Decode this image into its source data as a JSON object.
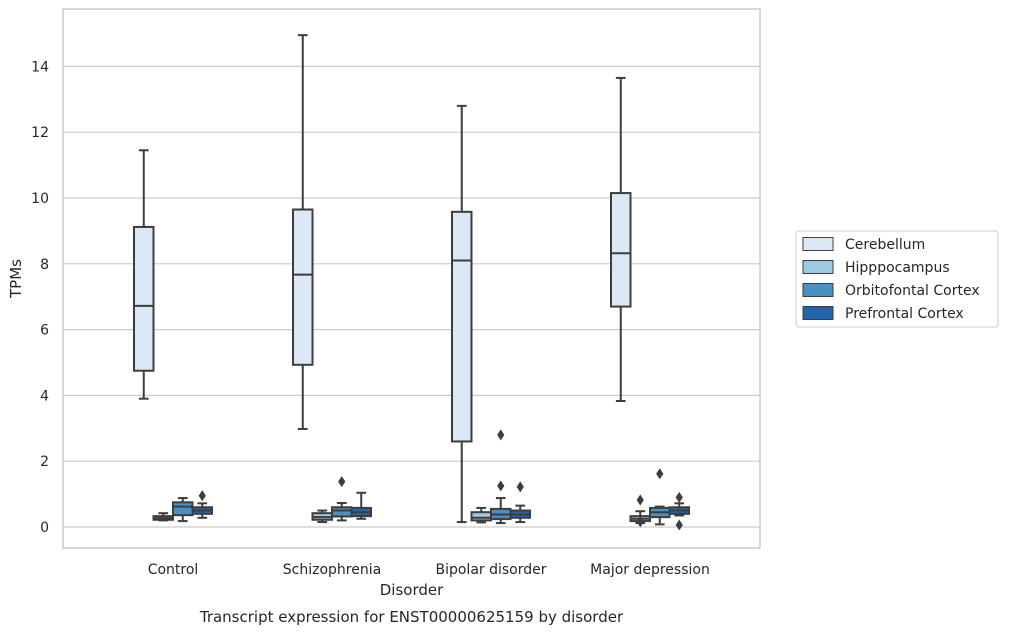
{
  "chart_data": {
    "type": "box",
    "caption": "Transcript expression for ENST00000625159 by disorder",
    "xlabel": "Disorder",
    "ylabel": "TPMs",
    "ylim": [
      -0.65,
      15.55
    ],
    "yticks": [
      0,
      2,
      4,
      6,
      8,
      10,
      12,
      14
    ],
    "grid": true,
    "legend_position": "right",
    "categories": [
      "Control",
      "Schizophrenia",
      "Bipolar disorder",
      "Major depression"
    ],
    "series": [
      {
        "name": "Cerebellum",
        "color": "#dbe9f6",
        "boxes": [
          {
            "whislo": 3.9,
            "q1": 4.75,
            "med": 6.72,
            "q3": 9.12,
            "whishi": 11.45,
            "fliers": []
          },
          {
            "whislo": 2.98,
            "q1": 4.93,
            "med": 7.67,
            "q3": 9.65,
            "whishi": 14.95,
            "fliers": []
          },
          {
            "whislo": 0.15,
            "q1": 2.6,
            "med": 8.1,
            "q3": 9.58,
            "whishi": 12.8,
            "fliers": []
          },
          {
            "whislo": 3.83,
            "q1": 6.7,
            "med": 8.32,
            "q3": 10.15,
            "whishi": 13.65,
            "fliers": []
          }
        ]
      },
      {
        "name": "Hipppocampus",
        "color": "#9ecae1",
        "boxes": [
          {
            "whislo": 0.2,
            "q1": 0.22,
            "med": 0.27,
            "q3": 0.33,
            "whishi": 0.42,
            "fliers": []
          },
          {
            "whislo": 0.15,
            "q1": 0.22,
            "med": 0.3,
            "q3": 0.42,
            "whishi": 0.5,
            "fliers": []
          },
          {
            "whislo": 0.14,
            "q1": 0.2,
            "med": 0.28,
            "q3": 0.45,
            "whishi": 0.58,
            "fliers": []
          },
          {
            "whislo": 0.12,
            "q1": 0.18,
            "med": 0.25,
            "q3": 0.33,
            "whishi": 0.48,
            "fliers": [
              0.16,
              0.82
            ]
          }
        ]
      },
      {
        "name": "Orbitofontal Cortex",
        "color": "#4a90c2",
        "boxes": [
          {
            "whislo": 0.18,
            "q1": 0.36,
            "med": 0.62,
            "q3": 0.75,
            "whishi": 0.88,
            "fliers": []
          },
          {
            "whislo": 0.2,
            "q1": 0.32,
            "med": 0.5,
            "q3": 0.6,
            "whishi": 0.73,
            "fliers": [
              1.38
            ]
          },
          {
            "whislo": 0.12,
            "q1": 0.24,
            "med": 0.38,
            "q3": 0.55,
            "whishi": 0.88,
            "fliers": [
              1.25,
              2.8
            ]
          },
          {
            "whislo": 0.08,
            "q1": 0.3,
            "med": 0.45,
            "q3": 0.58,
            "whishi": 0.62,
            "fliers": [
              1.62
            ]
          }
        ]
      },
      {
        "name": "Prefrontal Cortex",
        "color": "#2166ac",
        "boxes": [
          {
            "whislo": 0.28,
            "q1": 0.4,
            "med": 0.5,
            "q3": 0.6,
            "whishi": 0.72,
            "fliers": [
              0.95
            ]
          },
          {
            "whislo": 0.25,
            "q1": 0.33,
            "med": 0.45,
            "q3": 0.58,
            "whishi": 1.04,
            "fliers": []
          },
          {
            "whislo": 0.15,
            "q1": 0.28,
            "med": 0.38,
            "q3": 0.5,
            "whishi": 0.65,
            "fliers": [
              1.22
            ]
          },
          {
            "whislo": 0.35,
            "q1": 0.4,
            "med": 0.5,
            "q3": 0.6,
            "whishi": 0.72,
            "fliers": [
              0.06,
              0.9
            ]
          }
        ]
      }
    ]
  }
}
